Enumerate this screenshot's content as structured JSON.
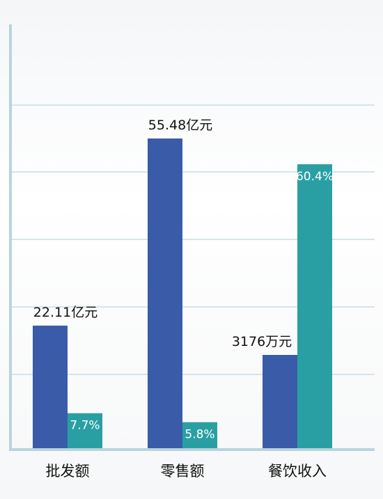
{
  "chart_data": {
    "type": "bar",
    "categories": [
      "批发额",
      "零售额",
      "餐饮收入"
    ],
    "series": [
      {
        "values": [
          22.11,
          55.48,
          0.3176
        ],
        "labels": [
          "22.11亿元",
          "55.48亿元",
          "3176万元"
        ],
        "color": "#3a5ba8"
      },
      {
        "values": [
          7.7,
          5.8,
          60.4
        ],
        "labels": [
          "7.7%",
          "5.8%",
          "60.4%"
        ],
        "color": "#2a9fa3"
      }
    ],
    "grid": true,
    "legend": "none"
  },
  "colors": {
    "axis": "#b9d4dc",
    "grid": "#d3e5ea",
    "text": "#111111",
    "inner_text": "#ffffff"
  }
}
